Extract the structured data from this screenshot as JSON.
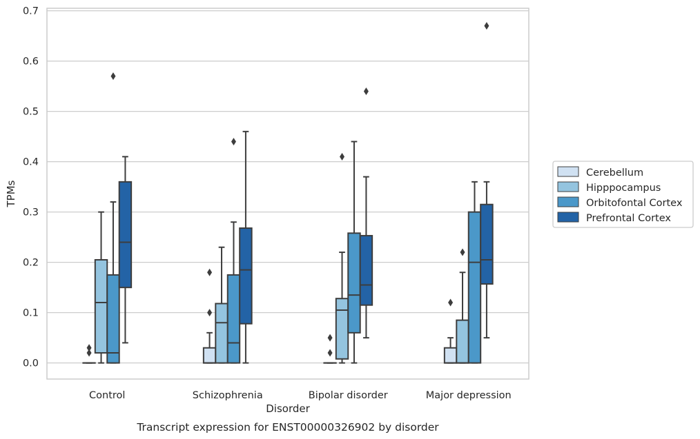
{
  "chart_data": {
    "type": "box",
    "title": "Transcript expression for ENST00000326902 by disorder",
    "xlabel": "Disorder",
    "ylabel": "TPMs",
    "ylim": [
      -0.032,
      0.705
    ],
    "yticks": [
      0.0,
      0.1,
      0.2,
      0.3,
      0.4,
      0.5,
      0.6,
      0.7
    ],
    "ytick_labels": [
      "0.0",
      "0.1",
      "0.2",
      "0.3",
      "0.4",
      "0.5",
      "0.6",
      "0.7"
    ],
    "grid": "horizontal",
    "legend_placement": "right",
    "categories": [
      "Control",
      "Schizophrenia",
      "Bipolar disorder",
      "Major depression"
    ],
    "series": [
      {
        "name": "Cerebellum",
        "color": "#d0e1f2",
        "boxes": [
          {
            "category": "Control",
            "whisker_low": 0.0,
            "q1": 0.0,
            "median": 0.0,
            "q3": 0.0,
            "whisker_high": 0.0,
            "outliers": [
              0.02,
              0.03
            ]
          },
          {
            "category": "Schizophrenia",
            "whisker_low": 0.0,
            "q1": 0.0,
            "median": 0.0,
            "q3": 0.03,
            "whisker_high": 0.06,
            "outliers": [
              0.1,
              0.18
            ]
          },
          {
            "category": "Bipolar disorder",
            "whisker_low": 0.0,
            "q1": 0.0,
            "median": 0.0,
            "q3": 0.0,
            "whisker_high": 0.0,
            "outliers": [
              0.02,
              0.05
            ]
          },
          {
            "category": "Major depression",
            "whisker_low": 0.0,
            "q1": 0.0,
            "median": 0.0,
            "q3": 0.03,
            "whisker_high": 0.05,
            "outliers": [
              0.12
            ]
          }
        ]
      },
      {
        "name": "Hipppocampus",
        "color": "#94c4df",
        "boxes": [
          {
            "category": "Control",
            "whisker_low": 0.0,
            "q1": 0.02,
            "median": 0.12,
            "q3": 0.205,
            "whisker_high": 0.3,
            "outliers": []
          },
          {
            "category": "Schizophrenia",
            "whisker_low": 0.0,
            "q1": 0.0,
            "median": 0.08,
            "q3": 0.118,
            "whisker_high": 0.23,
            "outliers": []
          },
          {
            "category": "Bipolar disorder",
            "whisker_low": 0.0,
            "q1": 0.008,
            "median": 0.105,
            "q3": 0.128,
            "whisker_high": 0.22,
            "outliers": [
              0.41
            ]
          },
          {
            "category": "Major depression",
            "whisker_low": 0.0,
            "q1": 0.0,
            "median": 0.0,
            "q3": 0.085,
            "whisker_high": 0.18,
            "outliers": [
              0.22
            ]
          }
        ]
      },
      {
        "name": "Orbitofontal Cortex",
        "color": "#4b98c9",
        "boxes": [
          {
            "category": "Control",
            "whisker_low": 0.0,
            "q1": 0.0,
            "median": 0.02,
            "q3": 0.175,
            "whisker_high": 0.32,
            "outliers": [
              0.57
            ]
          },
          {
            "category": "Schizophrenia",
            "whisker_low": 0.0,
            "q1": 0.0,
            "median": 0.04,
            "q3": 0.175,
            "whisker_high": 0.28,
            "outliers": [
              0.44
            ]
          },
          {
            "category": "Bipolar disorder",
            "whisker_low": 0.0,
            "q1": 0.06,
            "median": 0.135,
            "q3": 0.258,
            "whisker_high": 0.44,
            "outliers": []
          },
          {
            "category": "Major depression",
            "whisker_low": 0.0,
            "q1": 0.0,
            "median": 0.2,
            "q3": 0.3,
            "whisker_high": 0.36,
            "outliers": []
          }
        ]
      },
      {
        "name": "Prefrontal Cortex",
        "color": "#2363a6",
        "boxes": [
          {
            "category": "Control",
            "whisker_low": 0.04,
            "q1": 0.15,
            "median": 0.24,
            "q3": 0.36,
            "whisker_high": 0.41,
            "outliers": []
          },
          {
            "category": "Schizophrenia",
            "whisker_low": 0.0,
            "q1": 0.078,
            "median": 0.185,
            "q3": 0.268,
            "whisker_high": 0.46,
            "outliers": []
          },
          {
            "category": "Bipolar disorder",
            "whisker_low": 0.05,
            "q1": 0.115,
            "median": 0.155,
            "q3": 0.253,
            "whisker_high": 0.37,
            "outliers": [
              0.54
            ]
          },
          {
            "category": "Major depression",
            "whisker_low": 0.05,
            "q1": 0.157,
            "median": 0.205,
            "q3": 0.315,
            "whisker_high": 0.36,
            "outliers": [
              0.67
            ]
          }
        ]
      }
    ]
  }
}
